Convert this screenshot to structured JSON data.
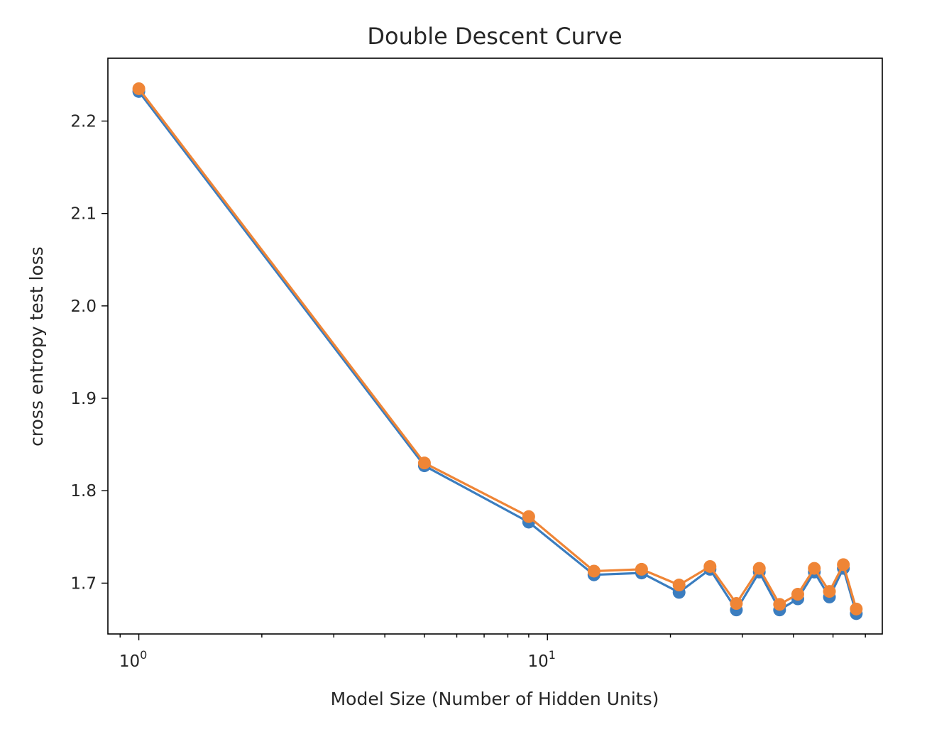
{
  "chart_data": {
    "type": "line",
    "title": "Double Descent Curve",
    "xlabel": "Model Size (Number of Hidden Units)",
    "ylabel": "cross entropy test loss",
    "xscale": "log",
    "xlim": [
      0.84,
      66
    ],
    "ylim": [
      1.645,
      2.268
    ],
    "grid": false,
    "markers": "circle",
    "x": [
      1,
      5,
      9,
      13,
      17,
      21,
      25,
      29,
      33,
      37,
      41,
      45,
      49,
      53,
      57
    ],
    "xticks": [
      {
        "value": 1,
        "base": "10",
        "exp": "0"
      },
      {
        "value": 10,
        "base": "10",
        "exp": "1"
      }
    ],
    "yticks": [
      {
        "value": 1.7,
        "label": "1.7"
      },
      {
        "value": 1.8,
        "label": "1.8"
      },
      {
        "value": 1.9,
        "label": "1.9"
      },
      {
        "value": 2.0,
        "label": "2.0"
      },
      {
        "value": 2.1,
        "label": "2.1"
      },
      {
        "value": 2.2,
        "label": "2.2"
      }
    ],
    "series": [
      {
        "color": "#3b7dbf",
        "values": [
          2.232,
          1.827,
          1.766,
          1.709,
          1.711,
          1.69,
          1.715,
          1.671,
          1.712,
          1.671,
          1.683,
          1.712,
          1.685,
          1.716,
          1.667
        ]
      },
      {
        "color": "#ef8536",
        "values": [
          2.235,
          1.83,
          1.772,
          1.713,
          1.715,
          1.698,
          1.718,
          1.678,
          1.716,
          1.677,
          1.688,
          1.716,
          1.691,
          1.72,
          1.672
        ]
      }
    ]
  }
}
